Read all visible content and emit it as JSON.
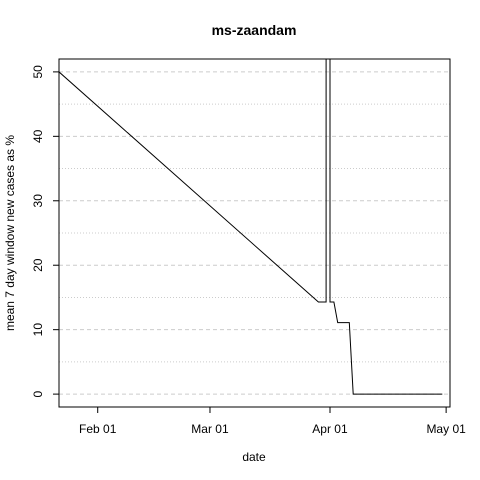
{
  "chart_data": {
    "type": "line",
    "title": "ms-zaandam",
    "xlabel": "date",
    "ylabel": "mean  7  day window new cases as %",
    "x_ticks": [
      {
        "label": "Feb 01",
        "date": "2020-02-01"
      },
      {
        "label": "Mar 01",
        "date": "2020-03-01"
      },
      {
        "label": "Apr 01",
        "date": "2020-04-01"
      },
      {
        "label": "May 01",
        "date": "2020-05-01"
      }
    ],
    "y_ticks": [
      0,
      10,
      20,
      30,
      40,
      50
    ],
    "xlim": [
      "2020-01-22",
      "2020-05-02"
    ],
    "ylim": [
      -2,
      52
    ],
    "grid": "horizontal dashed",
    "series": [
      {
        "color": "#000000",
        "points": [
          {
            "x": "2020-01-22",
            "y": 52
          },
          {
            "x": "2020-01-22",
            "y": 50
          },
          {
            "x": "2020-03-29",
            "y": 14.3
          },
          {
            "x": "2020-03-31",
            "y": 14.3
          },
          {
            "x": "2020-03-31",
            "y": 52
          },
          {
            "x": "2020-04-01",
            "y": 52
          },
          {
            "x": "2020-04-01",
            "y": 14.3
          },
          {
            "x": "2020-04-02",
            "y": 14.3
          },
          {
            "x": "2020-04-03",
            "y": 11.1
          },
          {
            "x": "2020-04-06",
            "y": 11.1
          },
          {
            "x": "2020-04-07",
            "y": 0
          },
          {
            "x": "2020-04-30",
            "y": 0
          }
        ]
      }
    ]
  }
}
